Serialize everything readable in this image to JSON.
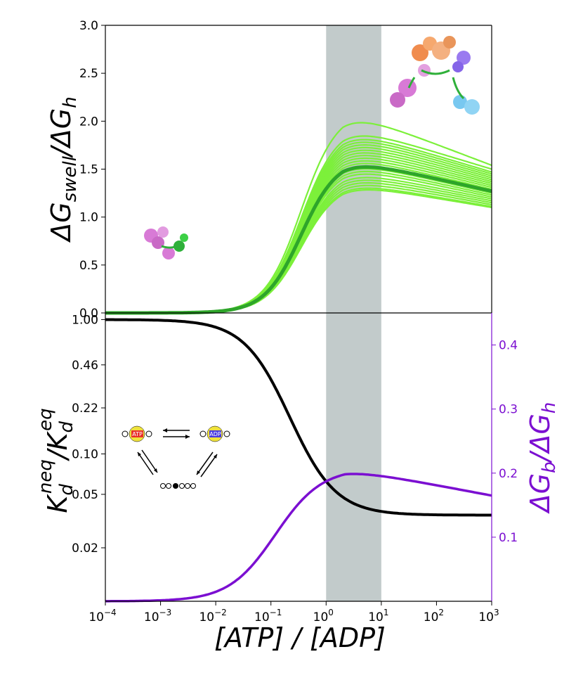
{
  "colors": {
    "light_green": "#7cf03a",
    "dark_green": "#2ea52a",
    "black": "#000000",
    "purple": "#7b0fd1",
    "shade": "#9aa8a8",
    "atp_red": "#e8302a",
    "adp_blue": "#4a3be0",
    "bead_yellow": "#f0e23c"
  },
  "chart_data": [
    {
      "id": "top",
      "type": "line",
      "xscale": "log",
      "xlim": [
        0.0001,
        1000
      ],
      "ylim": [
        0.0,
        3.0
      ],
      "ylabel": "ΔG_swell/ΔG_h",
      "ylabel_main": "ΔG",
      "ylabel_sub": "swell",
      "ylabel_mid": "/ΔG",
      "ylabel_sub2": "h",
      "yticks": [
        0.0,
        0.5,
        1.0,
        1.5,
        2.0,
        2.5,
        3.0
      ],
      "ytick_labels": [
        "0.0",
        "0.5",
        "1.0",
        "1.5",
        "2.0",
        "2.5",
        "3.0"
      ],
      "shaded_region": [
        1,
        10
      ],
      "mean_curve": {
        "name": "mean",
        "x_center": 0.4,
        "rise_width": 0.55,
        "peak": 1.62,
        "peak_x": 2.0,
        "end_value": 1.27
      },
      "ensemble_curves": [
        {
          "peak": 2.13,
          "end": 1.54
        },
        {
          "peak": 1.97,
          "end": 1.5
        },
        {
          "peak": 1.93,
          "end": 1.47
        },
        {
          "peak": 1.9,
          "end": 1.45
        },
        {
          "peak": 1.87,
          "end": 1.43
        },
        {
          "peak": 1.84,
          "end": 1.41
        },
        {
          "peak": 1.81,
          "end": 1.39
        },
        {
          "peak": 1.78,
          "end": 1.37
        },
        {
          "peak": 1.75,
          "end": 1.35
        },
        {
          "peak": 1.72,
          "end": 1.33
        },
        {
          "peak": 1.69,
          "end": 1.31
        },
        {
          "peak": 1.66,
          "end": 1.29
        },
        {
          "peak": 1.63,
          "end": 1.27
        },
        {
          "peak": 1.6,
          "end": 1.25
        },
        {
          "peak": 1.57,
          "end": 1.23
        },
        {
          "peak": 1.54,
          "end": 1.21
        },
        {
          "peak": 1.5,
          "end": 1.19
        },
        {
          "peak": 1.47,
          "end": 1.17
        },
        {
          "peak": 1.44,
          "end": 1.15
        },
        {
          "peak": 1.41,
          "end": 1.13
        },
        {
          "peak": 1.38,
          "end": 1.11
        },
        {
          "peak": 1.36,
          "end": 1.1
        }
      ]
    },
    {
      "id": "bottom",
      "type": "line",
      "xscale": "log",
      "xlim": [
        0.0001,
        1000
      ],
      "xlabel": "[ATP] / [ADP]",
      "xticks": [
        0.0001,
        0.001,
        0.01,
        0.1,
        1,
        10,
        100,
        1000
      ],
      "xtick_bases": [
        "10",
        "10",
        "10",
        "10",
        "10",
        "10",
        "10",
        "10"
      ],
      "xtick_exps": [
        "−4",
        "−3",
        "−2",
        "−1",
        "0",
        "1",
        "2",
        "3"
      ],
      "left_axis": {
        "ylabel": "K_d^neq/K_d^eq",
        "ylabel_k1": "K",
        "ylabel_sub1": "d",
        "ylabel_sup1": "neq",
        "ylabel_slash": "/K",
        "ylabel_sub2": "d",
        "ylabel_sup2": "eq",
        "yscale": "log",
        "ylim": [
          0.008,
          1.12
        ],
        "yticks": [
          1.0,
          0.46,
          0.22,
          0.1,
          0.05,
          0.02
        ],
        "ytick_labels": [
          "1.00",
          "0.46",
          "0.22",
          "0.10",
          "0.05",
          "0.02"
        ]
      },
      "right_axis": {
        "ylabel": "ΔG_b/ΔG_h",
        "ylabel_main": "ΔG",
        "ylabel_sub": "b",
        "ylabel_mid": "/ΔG",
        "ylabel_sub2": "h",
        "ylim": [
          0.0,
          0.45
        ],
        "yticks": [
          0.1,
          0.2,
          0.3,
          0.4
        ],
        "ytick_labels": [
          "0.1",
          "0.2",
          "0.3",
          "0.4"
        ]
      },
      "series": [
        {
          "name": "K_d ratio",
          "axis": "left",
          "start": 1.0,
          "end": 0.035,
          "mid_x": 0.22,
          "width": 0.85
        },
        {
          "name": "ΔG_b/ΔG_h",
          "axis": "right",
          "start": 0.0,
          "peak": 0.2,
          "peak_x": 2.2,
          "end": 0.157
        }
      ],
      "shaded_region": [
        1,
        10
      ],
      "inset": {
        "atp_label": "ATP",
        "adp_label": "ADP"
      }
    }
  ]
}
